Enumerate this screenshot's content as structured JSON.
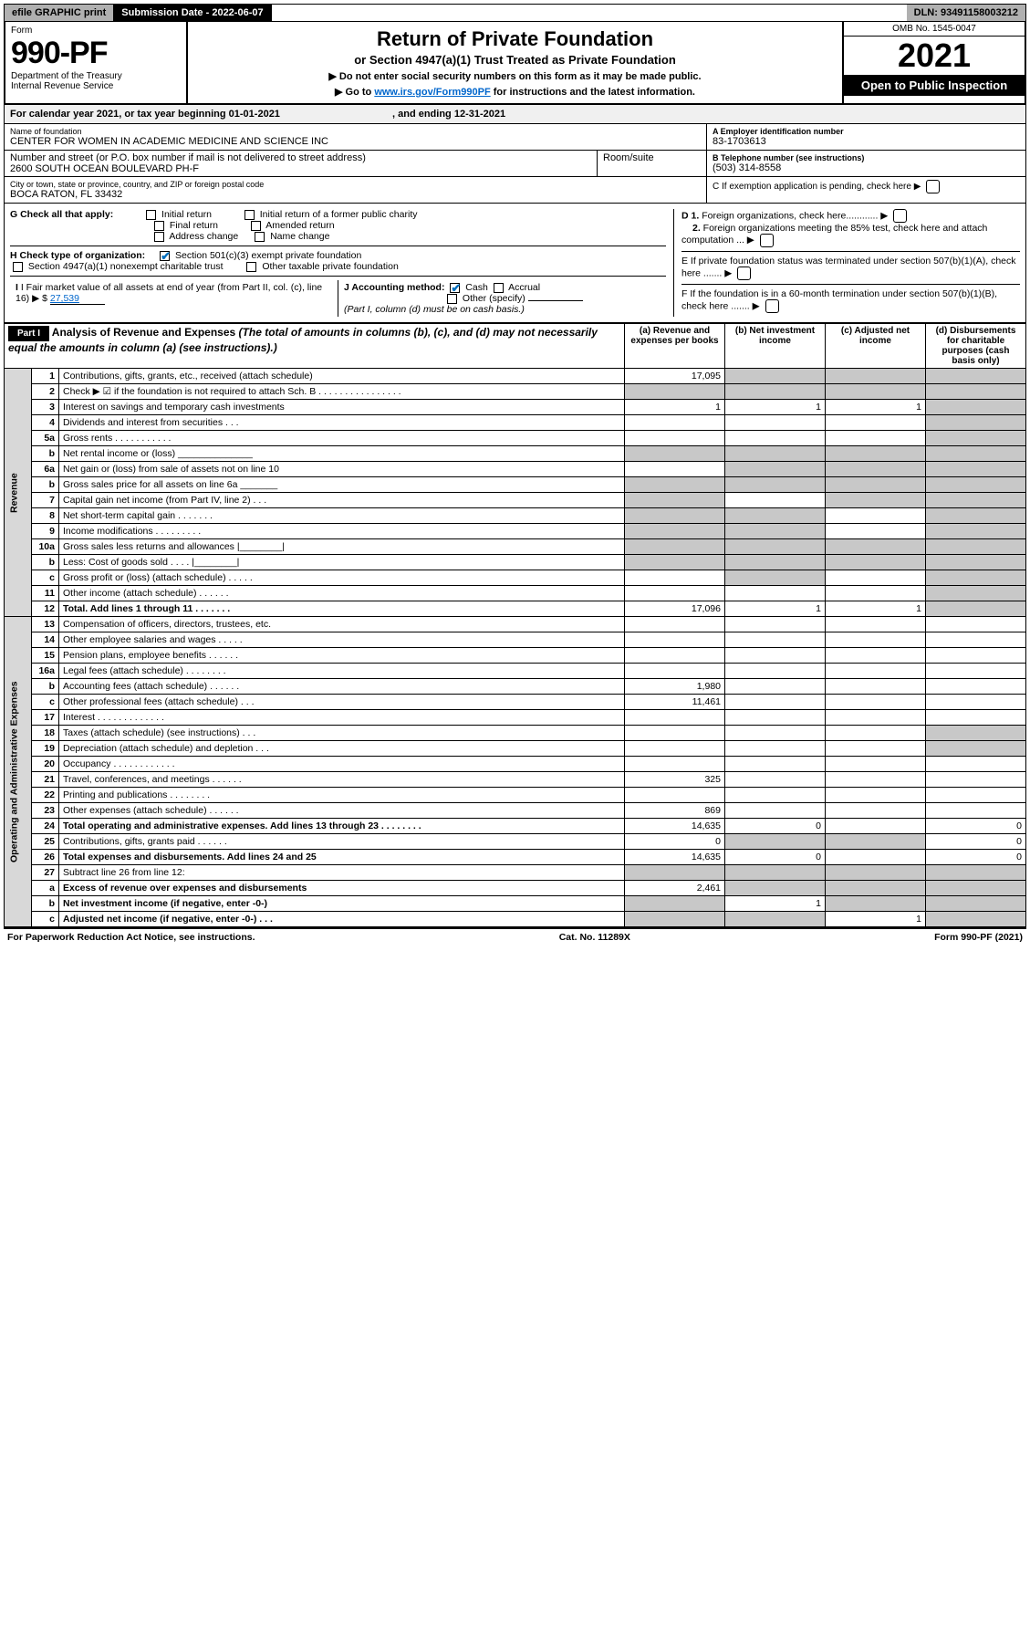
{
  "topbar": {
    "efile": "efile GRAPHIC print",
    "subdate_label": "Submission Date - ",
    "subdate": "2022-06-07",
    "dln_label": "DLN: ",
    "dln": "93491158003212"
  },
  "header": {
    "form_word": "Form",
    "form_no": "990-PF",
    "dept1": "Department of the Treasury",
    "dept2": "Internal Revenue Service",
    "title": "Return of Private Foundation",
    "subtitle": "or Section 4947(a)(1) Trust Treated as Private Foundation",
    "note1": "▶ Do not enter social security numbers on this form as it may be made public.",
    "note2_pre": "▶ Go to ",
    "note2_link": "www.irs.gov/Form990PF",
    "note2_post": " for instructions and the latest information.",
    "omb": "OMB No. 1545-0047",
    "year": "2021",
    "open": "Open to Public Inspection"
  },
  "cal": {
    "text_pre": "For calendar year 2021, or tax year beginning ",
    "begin": "01-01-2021",
    "text_mid": " , and ending ",
    "end": "12-31-2021"
  },
  "entity": {
    "name_label": "Name of foundation",
    "name": "CENTER FOR WOMEN IN ACADEMIC MEDICINE AND SCIENCE INC",
    "street_label": "Number and street (or P.O. box number if mail is not delivered to street address)",
    "street": "2600 SOUTH OCEAN BOULEVARD PH-F",
    "room_label": "Room/suite",
    "city_label": "City or town, state or province, country, and ZIP or foreign postal code",
    "city": "BOCA RATON, FL  33432",
    "ein_label": "A Employer identification number",
    "ein": "83-1703613",
    "tel_label": "B Telephone number (see instructions)",
    "tel": "(503) 314-8558",
    "c_label": "C If exemption application is pending, check here",
    "d1": "D 1. Foreign organizations, check here............",
    "d2": "2. Foreign organizations meeting the 85% test, check here and attach computation ...",
    "e_label": "E  If private foundation status was terminated under section 507(b)(1)(A), check here .......",
    "f_label": "F  If the foundation is in a 60-month termination under section 507(b)(1)(B), check here .......",
    "g_label": "G Check all that apply:",
    "g_opts": [
      "Initial return",
      "Final return",
      "Address change",
      "Initial return of a former public charity",
      "Amended return",
      "Name change"
    ],
    "h_label": "H Check type of organization:",
    "h1": "Section 501(c)(3) exempt private foundation",
    "h2": "Section 4947(a)(1) nonexempt charitable trust",
    "h3": "Other taxable private foundation",
    "i_label": "I Fair market value of all assets at end of year (from Part II, col. (c), line 16)",
    "i_val": "27,539",
    "j_label": "J Accounting method:",
    "j_cash": "Cash",
    "j_accrual": "Accrual",
    "j_other": "Other (specify)",
    "j_note": "(Part I, column (d) must be on cash basis.)"
  },
  "part1": {
    "hdr": "Part I",
    "title": "Analysis of Revenue and Expenses",
    "title_note": " (The total of amounts in columns (b), (c), and (d) may not necessarily equal the amounts in column (a) (see instructions).)",
    "cols": {
      "a": "(a) Revenue and expenses per books",
      "b": "(b) Net investment income",
      "c": "(c) Adjusted net income",
      "d": "(d) Disbursements for charitable purposes (cash basis only)"
    }
  },
  "sidelabels": {
    "rev": "Revenue",
    "exp": "Operating and Administrative Expenses"
  },
  "rows": [
    {
      "n": "1",
      "t": "Contributions, gifts, grants, etc., received (attach schedule)",
      "a": "17,095",
      "bs": true,
      "cs": true,
      "ds": true
    },
    {
      "n": "2",
      "t": "Check ▶ ☑ if the foundation is not required to attach Sch. B   .  .  .  .  .  .  .  .  .  .  .  .  .  .  .  .",
      "as": true,
      "bs": true,
      "cs": true,
      "ds": true
    },
    {
      "n": "3",
      "t": "Interest on savings and temporary cash investments",
      "a": "1",
      "b": "1",
      "c": "1",
      "ds": true
    },
    {
      "n": "4",
      "t": "Dividends and interest from securities   .   .   .",
      "ds": true
    },
    {
      "n": "5a",
      "t": "Gross rents    .   .   .   .   .   .   .   .   .   .   .",
      "ds": true
    },
    {
      "n": "b",
      "t": "Net rental income or (loss)  ______________",
      "as": true,
      "bs": true,
      "cs": true,
      "ds": true
    },
    {
      "n": "6a",
      "t": "Net gain or (loss) from sale of assets not on line 10",
      "bs": true,
      "cs": true,
      "ds": true
    },
    {
      "n": "b",
      "t": "Gross sales price for all assets on line 6a _______",
      "as": true,
      "bs": true,
      "cs": true,
      "ds": true
    },
    {
      "n": "7",
      "t": "Capital gain net income (from Part IV, line 2)   .   .   .",
      "as": true,
      "cs": true,
      "ds": true
    },
    {
      "n": "8",
      "t": "Net short-term capital gain   .   .   .   .   .   .   .",
      "as": true,
      "bs": true,
      "ds": true
    },
    {
      "n": "9",
      "t": "Income modifications  .   .   .   .   .   .   .   .   .",
      "as": true,
      "bs": true,
      "ds": true
    },
    {
      "n": "10a",
      "t": "Gross sales less returns and allowances  |________|",
      "as": true,
      "bs": true,
      "cs": true,
      "ds": true
    },
    {
      "n": "b",
      "t": "Less: Cost of goods sold    .   .   .   .  |________|",
      "as": true,
      "bs": true,
      "cs": true,
      "ds": true
    },
    {
      "n": "c",
      "t": "Gross profit or (loss) (attach schedule)   .   .   .   .   .",
      "bs": true,
      "ds": true
    },
    {
      "n": "11",
      "t": "Other income (attach schedule)   .   .   .   .   .   .",
      "ds": true
    },
    {
      "n": "12",
      "t": "Total. Add lines 1 through 11   .   .   .   .   .   .   .",
      "bold": true,
      "a": "17,096",
      "b": "1",
      "c": "1",
      "ds": true
    },
    {
      "n": "13",
      "t": "Compensation of officers, directors, trustees, etc."
    },
    {
      "n": "14",
      "t": "Other employee salaries and wages   .   .   .   .   ."
    },
    {
      "n": "15",
      "t": "Pension plans, employee benefits  .   .   .   .   .   ."
    },
    {
      "n": "16a",
      "t": "Legal fees (attach schedule)  .   .   .   .   .   .   .   ."
    },
    {
      "n": "b",
      "t": "Accounting fees (attach schedule)  .   .   .   .   .   .",
      "a": "1,980"
    },
    {
      "n": "c",
      "t": "Other professional fees (attach schedule)   .   .   .",
      "a": "11,461"
    },
    {
      "n": "17",
      "t": "Interest  .   .   .   .   .   .   .   .   .   .   .   .   ."
    },
    {
      "n": "18",
      "t": "Taxes (attach schedule) (see instructions)   .   .   .",
      "ds": true
    },
    {
      "n": "19",
      "t": "Depreciation (attach schedule) and depletion   .   .   .",
      "ds": true
    },
    {
      "n": "20",
      "t": "Occupancy  .   .   .   .   .   .   .   .   .   .   .   ."
    },
    {
      "n": "21",
      "t": "Travel, conferences, and meetings  .   .   .   .   .   .",
      "a": "325"
    },
    {
      "n": "22",
      "t": "Printing and publications  .   .   .   .   .   .   .   ."
    },
    {
      "n": "23",
      "t": "Other expenses (attach schedule)  .   .   .   .   .   .",
      "a": "869"
    },
    {
      "n": "24",
      "t": "Total operating and administrative expenses. Add lines 13 through 23   .   .   .   .   .   .   .   .",
      "bold": true,
      "a": "14,635",
      "b": "0",
      "d": "0"
    },
    {
      "n": "25",
      "t": "Contributions, gifts, grants paid    .   .   .   .   .   .",
      "a": "0",
      "bs": true,
      "cs": true,
      "d": "0"
    },
    {
      "n": "26",
      "t": "Total expenses and disbursements. Add lines 24 and 25",
      "bold": true,
      "a": "14,635",
      "b": "0",
      "d": "0"
    },
    {
      "n": "27",
      "t": "Subtract line 26 from line 12:",
      "as": true,
      "bs": true,
      "cs": true,
      "ds": true
    },
    {
      "n": "a",
      "t": "Excess of revenue over expenses and disbursements",
      "bold": true,
      "a": "2,461",
      "bs": true,
      "cs": true,
      "ds": true
    },
    {
      "n": "b",
      "t": "Net investment income (if negative, enter -0-)",
      "bold": true,
      "as": true,
      "b": "1",
      "cs": true,
      "ds": true
    },
    {
      "n": "c",
      "t": "Adjusted net income (if negative, enter -0-)   .   .   .",
      "bold": true,
      "as": true,
      "bs": true,
      "c": "1",
      "ds": true
    }
  ],
  "footer": {
    "left": "For Paperwork Reduction Act Notice, see instructions.",
    "mid": "Cat. No. 11289X",
    "right": "Form 990-PF (2021)"
  }
}
